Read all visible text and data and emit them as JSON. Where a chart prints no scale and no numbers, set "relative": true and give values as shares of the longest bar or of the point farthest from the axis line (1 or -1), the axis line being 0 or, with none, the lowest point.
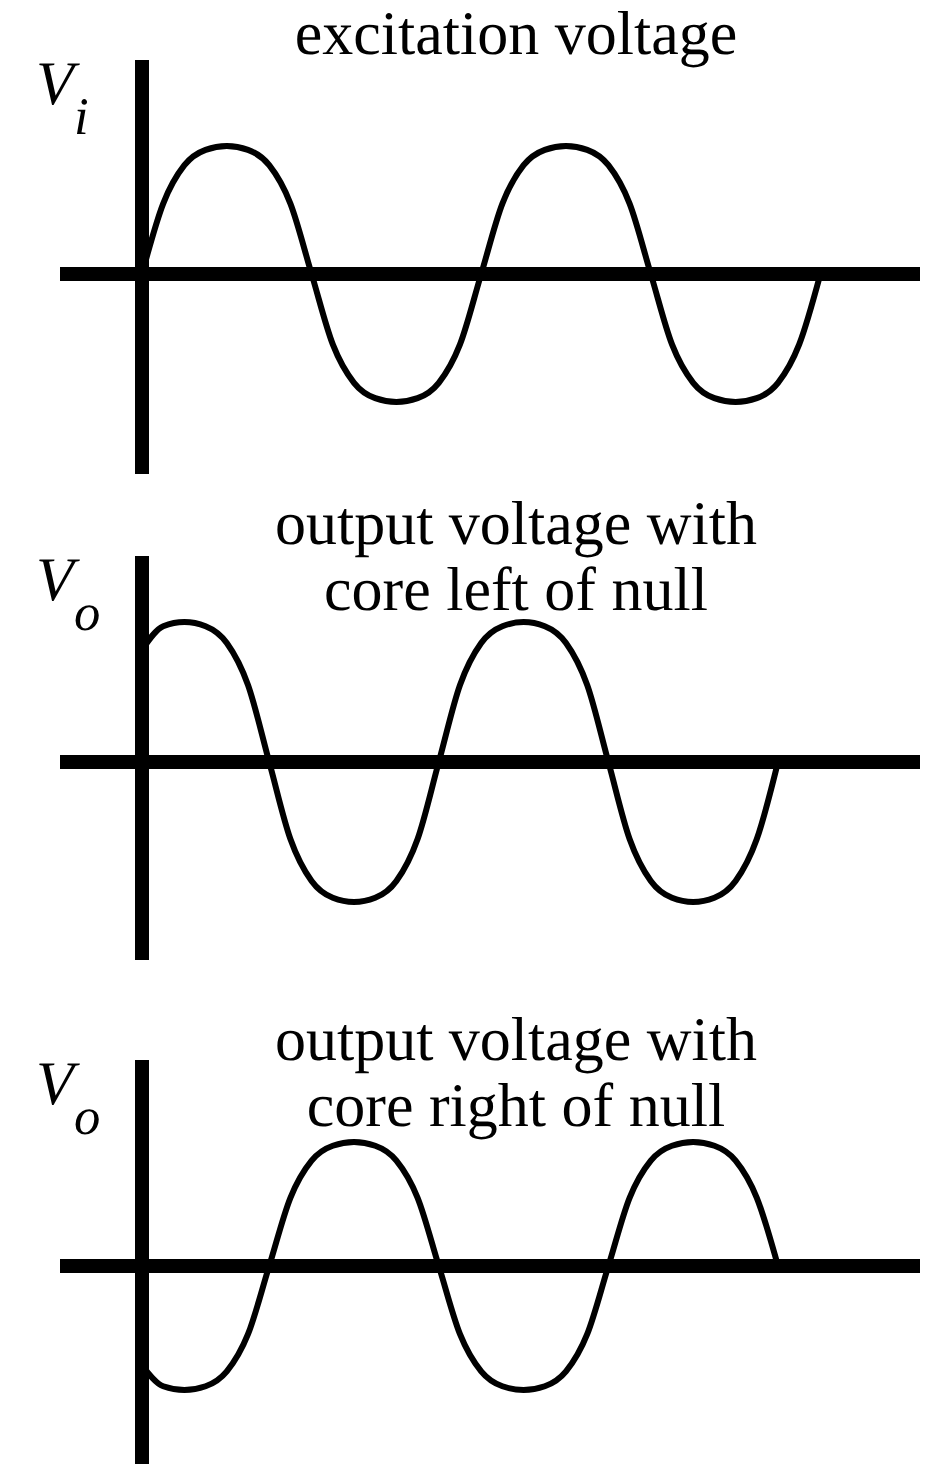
{
  "chart_data": [
    {
      "type": "line",
      "title": "excitation voltage",
      "ylabel": "V$_{i}$",
      "relative": true,
      "categories": [
        null,
        null,
        null,
        null,
        null,
        null,
        null,
        null,
        null,
        null,
        null,
        null,
        null,
        null,
        null,
        null,
        null,
        null,
        null,
        null,
        null,
        null,
        null,
        null,
        null,
        null,
        null,
        null,
        null,
        null,
        null,
        null,
        null
      ],
      "series": [
        {
          "color": "#000000",
          "values": [
            0,
            0.55,
            0.85,
            0.97,
            1,
            0.97,
            0.85,
            0.55,
            0,
            -0.55,
            -0.85,
            -0.97,
            -1,
            -0.97,
            -0.85,
            -0.55,
            0,
            0.55,
            0.85,
            0.97,
            1,
            0.97,
            0.85,
            0.55,
            0,
            -0.55,
            -0.85,
            -0.97,
            -1,
            -0.97,
            -0.85,
            -0.55,
            0
          ]
        }
      ]
    },
    {
      "type": "line",
      "title": "output voltage with core left of null",
      "ylabel": "V$_{o}$",
      "relative": true,
      "categories": [
        null,
        null,
        null,
        null,
        null,
        null,
        null,
        null,
        null,
        null,
        null,
        null,
        null,
        null,
        null,
        null,
        null,
        null,
        null,
        null,
        null,
        null,
        null,
        null,
        null,
        null,
        null,
        null,
        null,
        null,
        null
      ],
      "series": [
        {
          "color": "#000000",
          "values": [
            0.8,
            0.97,
            1,
            0.97,
            0.85,
            0.55,
            0,
            -0.55,
            -0.85,
            -0.97,
            -1,
            -0.97,
            -0.85,
            -0.55,
            0,
            0.55,
            0.85,
            0.97,
            1,
            0.97,
            0.85,
            0.55,
            0,
            -0.55,
            -0.85,
            -0.97,
            -1,
            -0.97,
            -0.85,
            -0.55,
            0
          ]
        }
      ]
    },
    {
      "type": "line",
      "title": "output voltage with core right of null",
      "ylabel": "V$_{o}$",
      "relative": true,
      "categories": [
        null,
        null,
        null,
        null,
        null,
        null,
        null,
        null,
        null,
        null,
        null,
        null,
        null,
        null,
        null,
        null,
        null,
        null,
        null,
        null,
        null,
        null,
        null,
        null,
        null,
        null,
        null,
        null,
        null,
        null,
        null
      ],
      "series": [
        {
          "color": "#000000",
          "values": [
            -0.8,
            -0.97,
            -1,
            -0.97,
            -0.85,
            -0.55,
            0,
            0.55,
            0.85,
            0.97,
            1,
            0.97,
            0.85,
            0.55,
            0,
            -0.55,
            -0.85,
            -0.97,
            -1,
            -0.97,
            -0.85,
            -0.55,
            0,
            0.55,
            0.85,
            0.97,
            1,
            0.97,
            0.85,
            0.55,
            0
          ]
        }
      ]
    }
  ]
}
